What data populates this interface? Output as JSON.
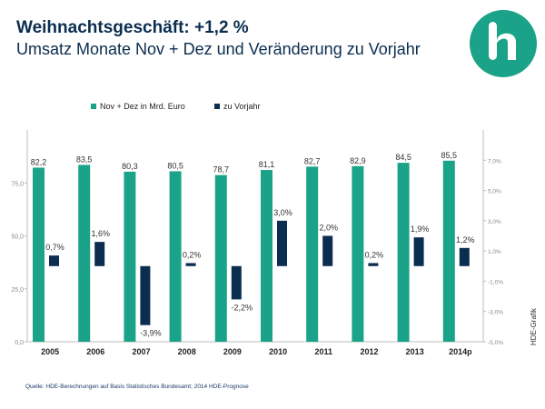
{
  "header": {
    "title": "Weihnachtsgeschäft: +1,2 %",
    "subtitle": "Umsatz Monate Nov + Dez und Veränderung zu Vorjahr"
  },
  "logo_icon": "hde-logo-icon",
  "colors": {
    "series_sales": "#1aa388",
    "series_change": "#0b2d4f",
    "title": "#0b2d4f",
    "logo": "#1aa388"
  },
  "source": "Quelle: HDE-Berechnungen  auf Basis Statistisches Bundesamt; 2014 HDE-Prognose",
  "credit": "HDE-Grafik",
  "chart_data": {
    "type": "bar",
    "categories": [
      "2005",
      "2006",
      "2007",
      "2008",
      "2009",
      "2010",
      "2011",
      "2012",
      "2013",
      "2014p"
    ],
    "series": [
      {
        "name": "Nov + Dez in Mrd. Euro",
        "axis": "left",
        "values": [
          82.2,
          83.5,
          80.3,
          80.5,
          78.7,
          81.1,
          82.7,
          82.9,
          84.5,
          85.5
        ],
        "labels": [
          "82,2",
          "83,5",
          "80,3",
          "80,5",
          "78,7",
          "81,1",
          "82,7",
          "82,9",
          "84,5",
          "85,5"
        ]
      },
      {
        "name": "zu Vorjahr",
        "axis": "right",
        "values": [
          0.7,
          1.6,
          -3.9,
          0.2,
          -2.2,
          3.0,
          2.0,
          0.2,
          1.9,
          1.2
        ],
        "labels": [
          "0,7%",
          "1,6%",
          "-3,9%",
          "0,2%",
          "-2,2%",
          "3,0%",
          "2,0%",
          "0,2%",
          "1,9%",
          "1,2%"
        ]
      }
    ],
    "y_left": {
      "min": 0,
      "max": 100,
      "ticks": [
        0,
        25,
        50,
        75
      ],
      "tick_labels": [
        "0,0",
        "25,0",
        "50,0",
        "75,0"
      ]
    },
    "y_right": {
      "min": -5,
      "max": 9,
      "ticks": [
        -5,
        -3,
        -1,
        1,
        3,
        5,
        7
      ],
      "tick_labels": [
        "-5,0%",
        "-3,0%",
        "-1,0%",
        "1,0%",
        "3,0%",
        "5,0%",
        "7,0%"
      ]
    },
    "grid": false,
    "legend": "top-center"
  }
}
